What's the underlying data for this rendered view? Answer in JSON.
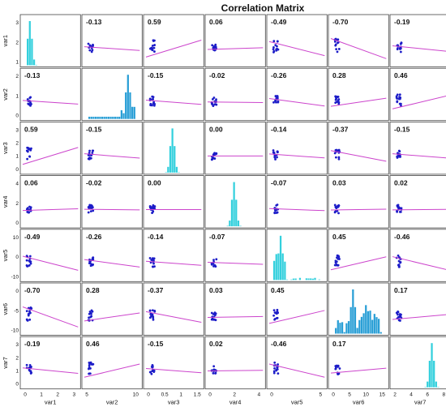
{
  "chart_data": {
    "type": "scatter",
    "subtype": "correlation-matrix",
    "title": "Correlation Matrix",
    "variables": [
      "var1",
      "var2",
      "var3",
      "var4",
      "var5",
      "var6",
      "var7"
    ],
    "correlation": [
      [
        null,
        "-0.13",
        "0.59",
        "0.06",
        "-0.49",
        "-0.70",
        "-0.19"
      ],
      [
        "-0.13",
        null,
        "-0.15",
        "-0.02",
        "-0.26",
        "0.28",
        "0.46"
      ],
      [
        "0.59",
        "-0.15",
        null,
        "0.00",
        "-0.14",
        "-0.37",
        "-0.15"
      ],
      [
        "0.06",
        "-0.02",
        "0.00",
        null,
        "-0.07",
        "0.03",
        "0.02"
      ],
      [
        "-0.49",
        "-0.26",
        "-0.14",
        "-0.07",
        null,
        "0.45",
        "-0.46"
      ],
      [
        "-0.70",
        "0.28",
        "-0.37",
        "0.03",
        "0.45",
        null,
        "0.17"
      ],
      [
        "-0.19",
        "0.46",
        "-0.15",
        "0.02",
        "-0.46",
        "0.17",
        null
      ]
    ],
    "y_ticks": [
      [
        "1",
        "2",
        "3"
      ],
      [
        "0",
        "1",
        "2"
      ],
      [
        "0",
        "1",
        "2",
        "3"
      ],
      [
        "0",
        "2",
        "4"
      ],
      [
        "-10",
        "0",
        "10"
      ],
      [
        "-10",
        "-5",
        "0"
      ],
      [
        "0",
        "1",
        "2",
        "3"
      ]
    ],
    "x_ticks": [
      [
        "0",
        "1",
        "2",
        "3"
      ],
      [
        "5",
        "10"
      ],
      [
        "0",
        "0.5",
        "1",
        "1.5"
      ],
      [
        "0",
        "2",
        "4"
      ],
      [
        "0",
        "5"
      ],
      [
        "0",
        "5",
        "10",
        "15"
      ],
      [
        "2",
        "4",
        "6",
        "8"
      ]
    ],
    "grid": false,
    "colors": {
      "points": "#1c1cc8",
      "fit_line": "#cc44cc",
      "hist_cyan": "#34d0dd",
      "hist_blue": "#2a9fd6",
      "border": "#444444",
      "text": "#111111"
    }
  }
}
